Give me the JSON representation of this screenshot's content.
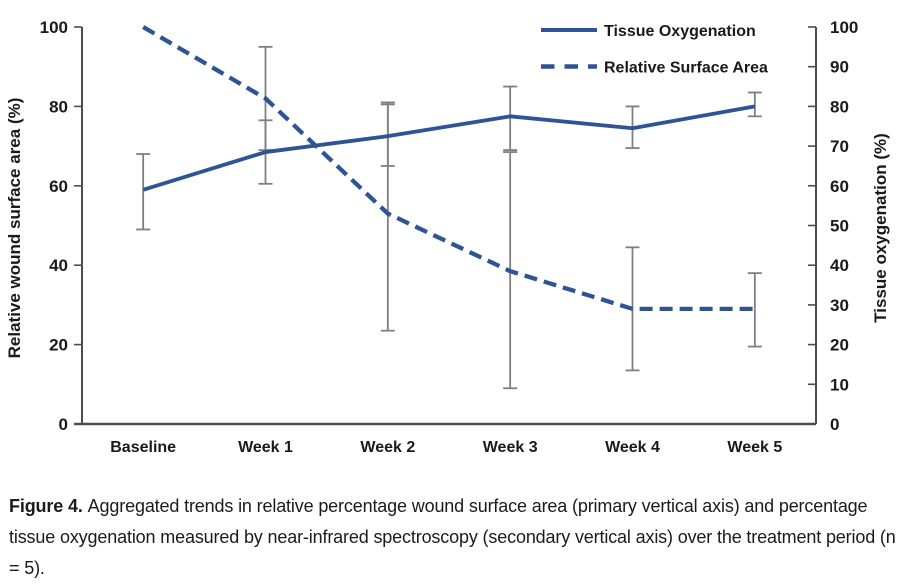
{
  "figure_caption": {
    "label": "Figure 4.",
    "text": "Aggregated trends in relative percentage wound surface area (primary vertical axis) and percentage tissue oxygenation measured by near-infrared spectroscopy (secondary vertical axis) over the treatment period (n = 5)."
  },
  "colors": {
    "series_blue": "#2F5496",
    "error_bar_gray": "#7F7F7F",
    "axis_line": "#4D4D4D",
    "text": "#1A1A1A"
  },
  "chart_data": {
    "type": "line",
    "categories": [
      "Baseline",
      "Week 1",
      "Week 2",
      "Week 3",
      "Week 4",
      "Week 5"
    ],
    "left_axis": {
      "label": "Relative wound surface area (%)",
      "min": 0,
      "max": 100,
      "tick_step": 20,
      "ticks": [
        0,
        20,
        40,
        60,
        80,
        100
      ]
    },
    "right_axis": {
      "label": "Tissue oxygenation (%)",
      "min": 0,
      "max": 100,
      "tick_step": 10,
      "ticks": [
        0,
        10,
        20,
        30,
        40,
        50,
        60,
        70,
        80,
        90,
        100
      ]
    },
    "grid": "off",
    "legend_position": "top-right-inside",
    "series": [
      {
        "name": "Tissue Oxygenation",
        "axis": "right",
        "line_style": "solid",
        "color": "#2F5496",
        "values": [
          59,
          68.5,
          72.5,
          77.5,
          74.5,
          80
        ],
        "error_low": [
          49,
          60.5,
          65,
          69,
          69.5,
          77.5
        ],
        "error_high": [
          68,
          76.5,
          81,
          85,
          80,
          83.5
        ]
      },
      {
        "name": "Relative Surface Area",
        "axis": "left",
        "line_style": "dashed",
        "color": "#2F5496",
        "values": [
          100,
          82,
          53,
          38.5,
          29,
          29
        ],
        "error_low": [
          null,
          69,
          23.5,
          9,
          13.5,
          19.5
        ],
        "error_high": [
          null,
          95,
          80.5,
          68.5,
          44.5,
          38
        ]
      }
    ]
  }
}
